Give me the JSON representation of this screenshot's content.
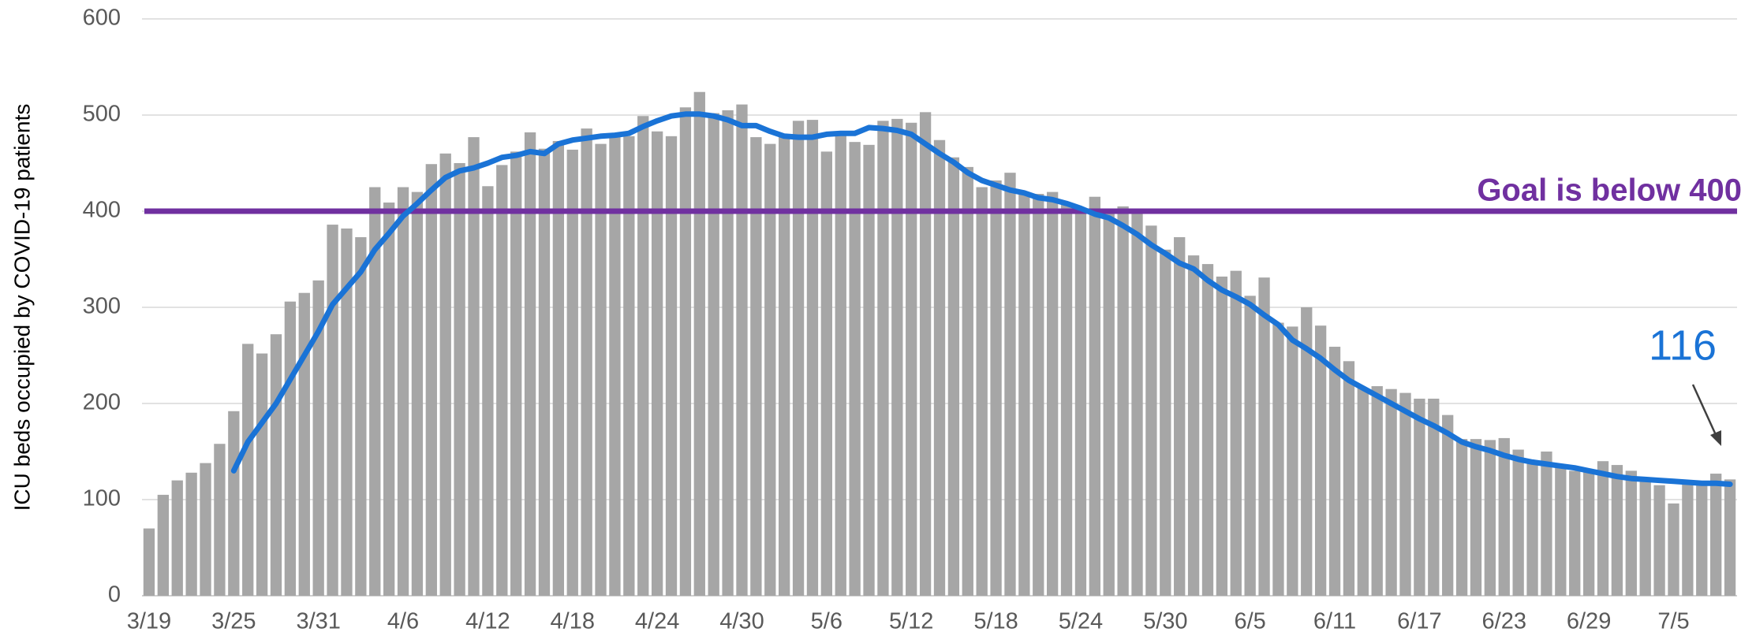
{
  "chart_data": {
    "type": "bar",
    "y_label": "ICU beds occupied by COVID-19 patients",
    "categories": [
      "3/19",
      null,
      null,
      null,
      null,
      null,
      "3/25",
      null,
      null,
      null,
      null,
      null,
      "3/31",
      null,
      null,
      null,
      null,
      null,
      "4/6",
      null,
      null,
      null,
      null,
      null,
      "4/12",
      null,
      null,
      null,
      null,
      null,
      "4/18",
      null,
      null,
      null,
      null,
      null,
      "4/24",
      null,
      null,
      null,
      null,
      null,
      "4/30",
      null,
      null,
      null,
      null,
      null,
      "5/6",
      null,
      null,
      null,
      null,
      null,
      "5/12",
      null,
      null,
      null,
      null,
      null,
      "5/18",
      null,
      null,
      null,
      null,
      null,
      "5/24",
      null,
      null,
      null,
      null,
      null,
      "5/30",
      null,
      null,
      null,
      null,
      null,
      "6/5",
      null,
      null,
      null,
      null,
      null,
      "6/11",
      null,
      null,
      null,
      null,
      null,
      "6/17",
      null,
      null,
      null,
      null,
      null,
      "6/23",
      null,
      null,
      null,
      null,
      null,
      "6/29",
      null,
      null,
      null,
      null,
      null,
      "7/5",
      null,
      null,
      null,
      null
    ],
    "series": [
      {
        "type": "bar",
        "color": "#a6a6a6",
        "values": [
          70,
          105,
          120,
          128,
          138,
          158,
          192,
          262,
          252,
          272,
          306,
          315,
          328,
          386,
          382,
          373,
          425,
          409,
          425,
          420,
          449,
          460,
          450,
          477,
          426,
          448,
          462,
          482,
          465,
          473,
          464,
          486,
          470,
          480,
          478,
          499,
          483,
          478,
          508,
          524,
          502,
          505,
          511,
          477,
          470,
          478,
          494,
          495,
          462,
          480,
          472,
          469,
          494,
          496,
          492,
          503,
          474,
          456,
          446,
          425,
          432,
          440,
          420,
          418,
          420,
          407,
          400,
          415,
          400,
          405,
          400,
          385,
          360,
          373,
          354,
          345,
          332,
          338,
          312,
          331,
          284,
          280,
          300,
          281,
          259,
          244,
          216,
          218,
          215,
          211,
          205,
          205,
          188,
          163,
          163,
          162,
          164,
          152,
          141,
          150,
          136,
          130,
          130,
          140,
          136,
          130,
          120,
          115,
          96,
          116,
          119,
          127,
          121
        ]
      },
      {
        "type": "line",
        "color": "#1a73d6",
        "values": [
          null,
          null,
          null,
          null,
          null,
          null,
          130,
          160,
          180,
          200,
          225,
          250,
          275,
          303,
          320,
          337,
          360,
          377,
          395,
          408,
          422,
          435,
          442,
          445,
          450,
          456,
          458,
          462,
          460,
          470,
          474,
          476,
          478,
          479,
          481,
          488,
          494,
          499,
          501,
          501,
          499,
          495,
          489,
          489,
          483,
          478,
          477,
          477,
          480,
          481,
          481,
          487,
          486,
          484,
          480,
          470,
          460,
          451,
          440,
          432,
          427,
          422,
          419,
          414,
          412,
          408,
          403,
          397,
          393,
          385,
          376,
          365,
          356,
          346,
          340,
          328,
          318,
          311,
          303,
          292,
          282,
          266,
          257,
          247,
          235,
          224,
          216,
          208,
          200,
          192,
          184,
          177,
          169,
          160,
          155,
          151,
          146,
          142,
          139,
          137,
          135,
          133,
          130,
          127,
          124,
          122,
          121,
          120,
          119,
          118,
          117,
          117,
          116
        ]
      }
    ],
    "reference_line": {
      "value": 400,
      "text": "Goal is below 400",
      "color": "#7030a0"
    },
    "end_label": "116",
    "ylim": [
      0,
      600
    ],
    "yticks": [
      0,
      100,
      200,
      300,
      400,
      500,
      600
    ],
    "grid": true
  }
}
